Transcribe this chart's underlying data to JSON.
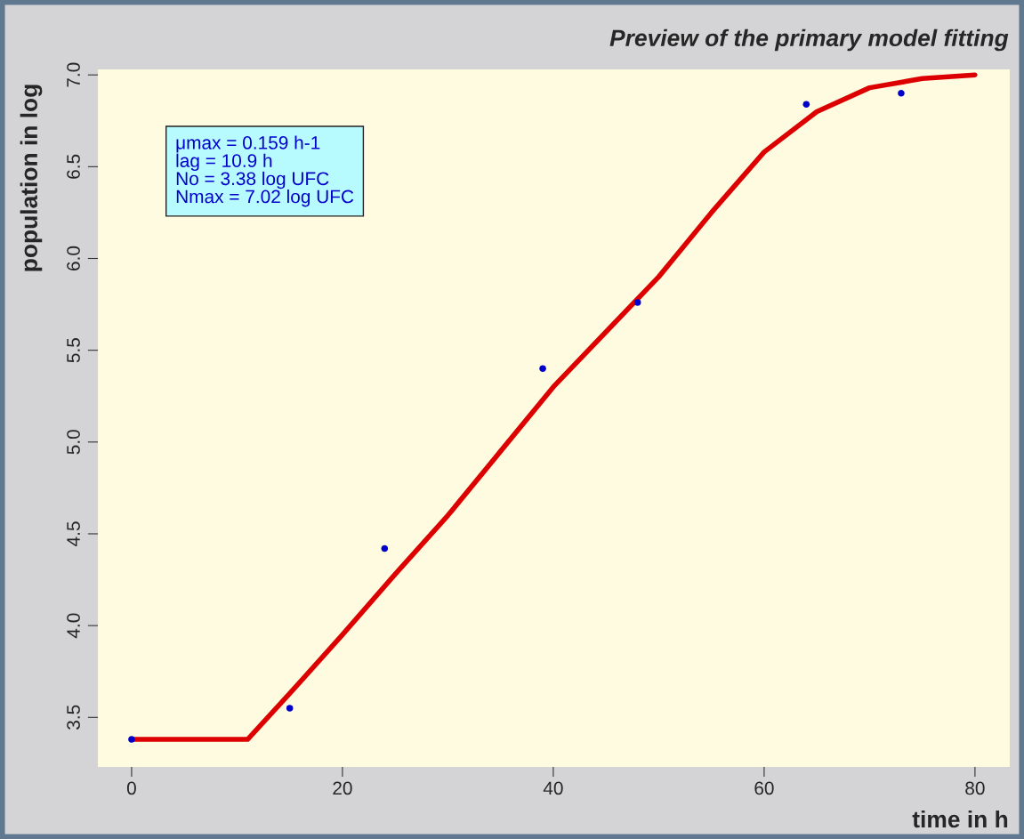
{
  "chart_data": {
    "type": "scatter",
    "title": "Preview of the primary model fitting",
    "xlabel": "time in h",
    "ylabel": "population in log",
    "annotations": [
      "μmax = 0.159 h-1",
      "lag = 10.9 h",
      "No = 3.38 log UFC",
      "Nmax = 7.02 log UFC"
    ],
    "series": [
      {
        "color": "#0000cc",
        "marker": "circle",
        "x": [
          0,
          15,
          24,
          39,
          48,
          64,
          73
        ],
        "values": [
          3.38,
          3.55,
          4.42,
          5.4,
          5.76,
          6.84,
          6.9
        ]
      },
      {
        "type": "line",
        "color": "#dd0000",
        "marker": "none",
        "line_style": "solid",
        "x": [
          0,
          11,
          15,
          20,
          25,
          30,
          35,
          40,
          45,
          50,
          55,
          60,
          65,
          70,
          75,
          80
        ],
        "values": [
          3.38,
          3.38,
          3.63,
          3.95,
          4.28,
          4.6,
          4.95,
          5.3,
          5.6,
          5.9,
          6.25,
          6.58,
          6.8,
          6.93,
          6.98,
          7.0
        ]
      }
    ],
    "xlim": [
      -3.2,
      83.3
    ],
    "ylim": [
      3.23,
      7.03
    ],
    "xticks": [
      0,
      20,
      40,
      60,
      80
    ],
    "yticks": [
      3.5,
      {
        "value": 4,
        "label": "4.0"
      },
      4.5,
      {
        "value": 5,
        "label": "5.0"
      },
      5.5,
      {
        "value": 6,
        "label": "6.0"
      },
      6.5,
      {
        "value": 7,
        "label": "7.0"
      }
    ],
    "grid": false,
    "legend": false
  }
}
